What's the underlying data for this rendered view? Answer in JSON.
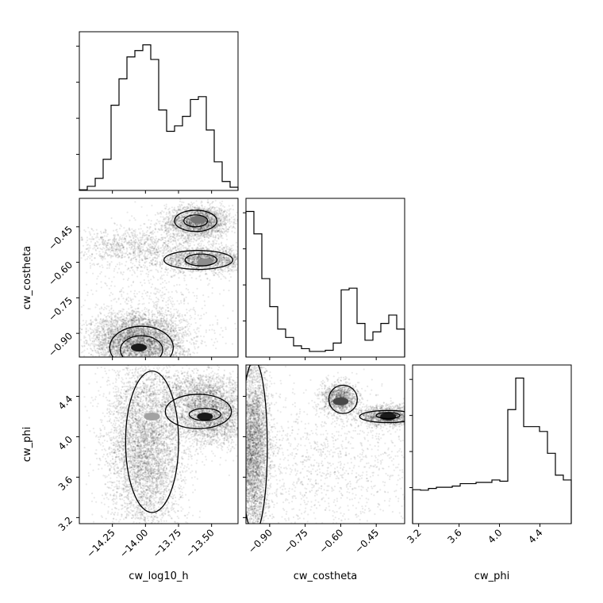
{
  "chart_data": {
    "type": "corner",
    "parameters": [
      "cw_log10_h",
      "cw_costheta",
      "cw_phi"
    ],
    "ranges": {
      "cw_log10_h": [
        -14.5,
        -13.3
      ],
      "cw_costheta": [
        -1.0,
        -0.33
      ],
      "cw_phi": [
        3.14,
        4.71
      ]
    },
    "ticks": {
      "cw_log10_h": {
        "values": [
          -14.25,
          -14.0,
          -13.75,
          -13.5
        ],
        "labels": [
          "−14.25",
          "−14.00",
          "−13.75",
          "−13.50"
        ]
      },
      "cw_costheta": {
        "values": [
          -0.9,
          -0.75,
          -0.6,
          -0.45
        ],
        "labels": [
          "−0.90",
          "−0.75",
          "−0.60",
          "−0.45"
        ]
      },
      "cw_phi": {
        "values": [
          3.2,
          3.6,
          4.0,
          4.4
        ],
        "labels": [
          "3.2",
          "3.6",
          "4.0",
          "4.4"
        ]
      }
    },
    "hist_1d": {
      "cw_log10_h": [
        0.2,
        1.3,
        3.8,
        9.8,
        26.8,
        35.1,
        42.0,
        44.0,
        45.8,
        41.2,
        25.3,
        18.6,
        20.3,
        23.3,
        28.6,
        29.5,
        19.0,
        9.0,
        2.8,
        1.0
      ],
      "cw_costheta": [
        26.0,
        22.0,
        14.0,
        9.0,
        5.0,
        3.5,
        2.0,
        1.5,
        1.0,
        1.0,
        1.2,
        2.5,
        12.0,
        12.3,
        6.0,
        3.0,
        4.5,
        6.0,
        7.5,
        5.0
      ],
      "cw_phi": [
        14.0,
        13.8,
        14.5,
        15.0,
        15.0,
        15.5,
        16.5,
        16.5,
        17.0,
        17.0,
        18.0,
        17.5,
        47.0,
        60.0,
        40.0,
        40.0,
        38.0,
        29.0,
        20.0,
        18.0
      ]
    },
    "peaks": {
      "cw_log10_h_vs_cw_costheta": [
        {
          "x": -13.6,
          "y": -0.42,
          "weight": 0.6
        },
        {
          "x": -13.55,
          "y": -0.6,
          "weight": 0.5
        },
        {
          "x": -14.05,
          "y": -0.96,
          "weight": 1.0
        }
      ],
      "cw_log10_h_vs_cw_phi": [
        {
          "x": -13.55,
          "y": 4.2,
          "weight": 1.0
        },
        {
          "x": -13.95,
          "y": 4.2,
          "weight": 0.4
        }
      ],
      "cw_costheta_vs_cw_phi": [
        {
          "x": -0.4,
          "y": 4.2,
          "weight": 1.0
        },
        {
          "x": -0.6,
          "y": 4.35,
          "weight": 0.8
        }
      ]
    },
    "grid": false,
    "legend": "none"
  }
}
